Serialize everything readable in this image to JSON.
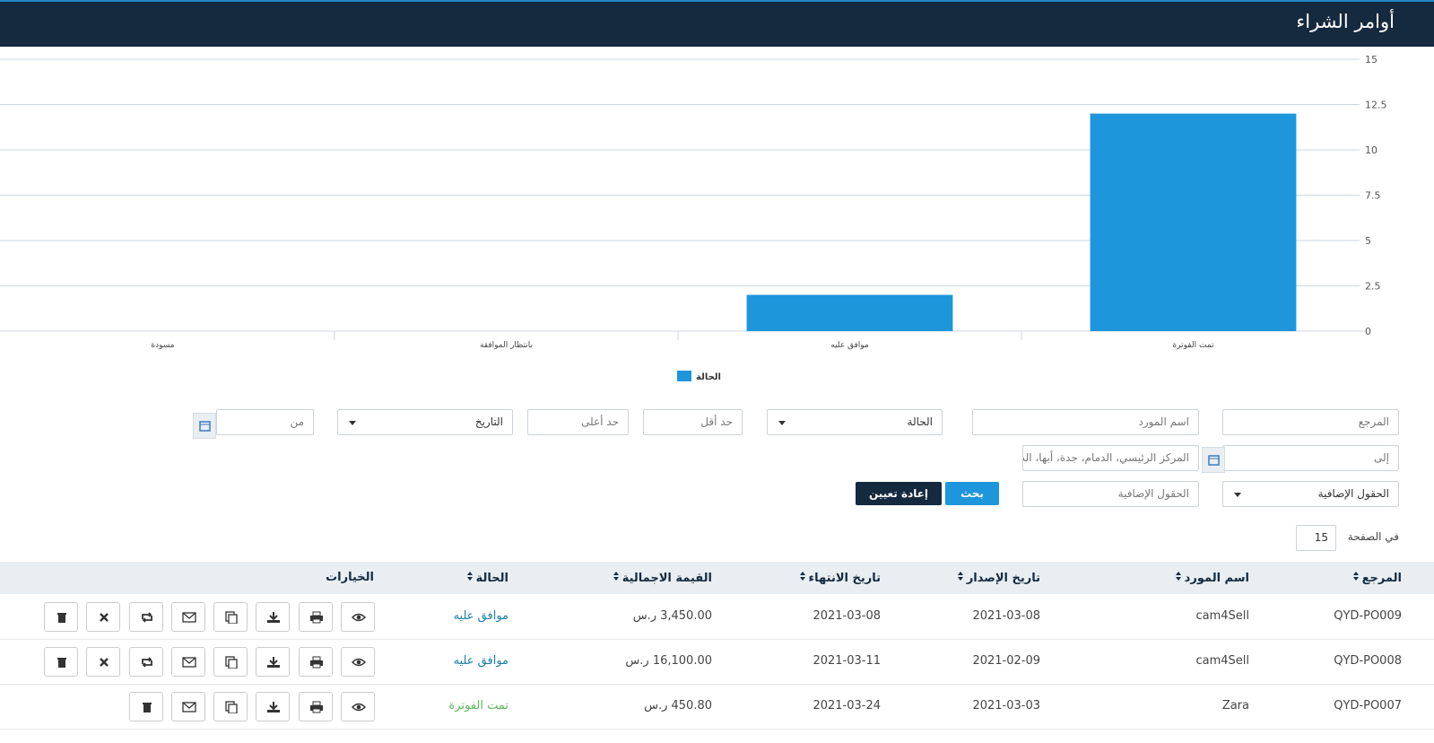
{
  "header": {
    "title": "أوامر الشراء"
  },
  "chart_data": {
    "type": "bar",
    "categories": [
      "تمت الفوترة",
      "موافق عليه",
      "بانتظار الموافقة",
      "مسودة"
    ],
    "series": [
      {
        "name": "الحالة",
        "color": "#1e96dc",
        "values": [
          12,
          2,
          0,
          0
        ]
      }
    ],
    "ylim": [
      0,
      15
    ],
    "yticks": [
      0,
      2.5,
      5,
      7.5,
      10,
      12.5,
      15
    ],
    "grid": true
  },
  "filters": {
    "reference": "المرجع",
    "supplier": "اسم المورد",
    "status": "الحالة",
    "min": "حد أقل",
    "max": "حد أعلى",
    "date": "التاريخ",
    "from": "من",
    "to": "إلى",
    "branches": "المركز الرئيسي، الدمام، جدة، أبها، الد",
    "extra_fields_select": "الحقول الإضافية",
    "extra_fields_input": "الحقول الإضافية",
    "search": "بحث",
    "reset": "إعادة تعيين"
  },
  "pagination": {
    "label": "في الصفحة",
    "per_page": 15
  },
  "table": {
    "columns": [
      "المرجع",
      "اسم المورد",
      "تاريخ الإصدار",
      "تاريخ الانتهاء",
      "القيمة الاجمالية",
      "الحالة",
      "الخيارات"
    ],
    "rows": [
      [
        "QYD-PO009",
        "cam4Sell",
        "2021-03-08",
        "2021-03-08",
        "3,450.00 ر.س",
        "موافق عليه"
      ],
      [
        "QYD-PO008",
        "cam4Sell",
        "2021-02-09",
        "2021-03-11",
        "16,100.00 ر.س",
        "موافق عليه"
      ],
      [
        "QYD-PO007",
        "Zara",
        "2021-03-03",
        "2021-03-24",
        "450.80 ر.س",
        "تمت الفوترة"
      ]
    ],
    "status_colors": [
      "#1a7fa8",
      "#1a7fa8",
      "#5cb85c"
    ]
  }
}
